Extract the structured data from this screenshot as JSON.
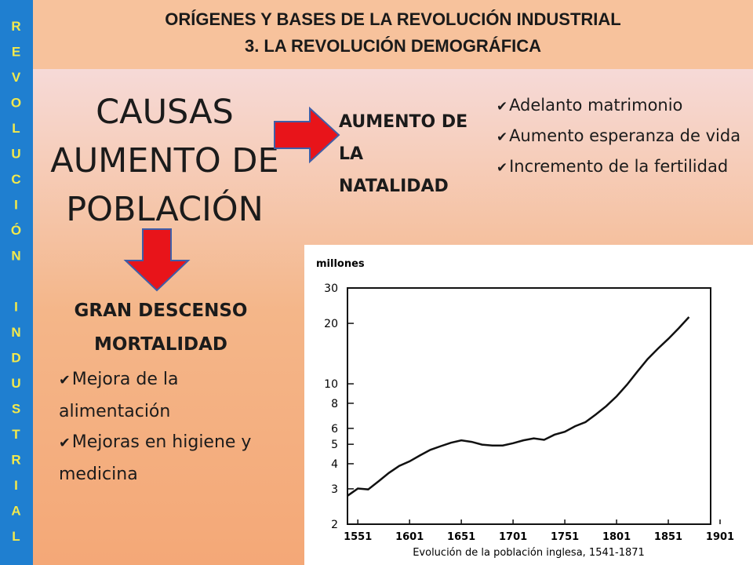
{
  "header": {
    "line1": "ORÍGENES Y BASES DE LA REVOLUCIÓN INDUSTRIAL",
    "line2": "3. LA REVOLUCIÓN DEMOGRÁFICA"
  },
  "sidebar": "REVOLUCIÓN INDUSTRIAL",
  "causes_title": "CAUSAS AUMENTO DE POBLACIÓN",
  "natality": {
    "title": "AUMENTO DE LA NATALIDAD",
    "items": [
      "Adelanto matrimonio",
      "Aumento esperanza de vida",
      "Incremento de la fertilidad"
    ]
  },
  "mortality": {
    "title": "GRAN DESCENSO MORTALIDAD",
    "items": [
      "Mejora de la alimentación",
      "Mejoras en higiene y medicina"
    ]
  },
  "chart_data": {
    "type": "line",
    "y_label": "millones",
    "x_label": "Evolución de la población inglesa, 1541-1871",
    "x": [
      1541,
      1551,
      1561,
      1571,
      1581,
      1591,
      1601,
      1611,
      1621,
      1631,
      1641,
      1651,
      1661,
      1671,
      1681,
      1691,
      1701,
      1711,
      1721,
      1731,
      1741,
      1751,
      1761,
      1771,
      1781,
      1791,
      1801,
      1811,
      1821,
      1831,
      1841,
      1851,
      1861,
      1871
    ],
    "series": [
      {
        "color": "#111111",
        "values": [
          2.77,
          3.01,
          2.98,
          3.27,
          3.6,
          3.9,
          4.11,
          4.4,
          4.69,
          4.89,
          5.09,
          5.23,
          5.14,
          4.98,
          4.93,
          4.93,
          5.06,
          5.23,
          5.35,
          5.26,
          5.58,
          5.77,
          6.15,
          6.45,
          7.04,
          7.74,
          8.66,
          9.89,
          11.49,
          13.28,
          14.97,
          16.74,
          18.9,
          21.5
        ]
      }
    ],
    "xlim": [
      1541,
      1901
    ],
    "xticks": [
      1551,
      1601,
      1651,
      1701,
      1751,
      1801,
      1851,
      1901
    ],
    "ylim": [
      2,
      30
    ],
    "yticks": [
      2,
      3,
      4,
      5,
      6,
      8,
      10,
      20,
      30
    ],
    "log_y": true
  }
}
